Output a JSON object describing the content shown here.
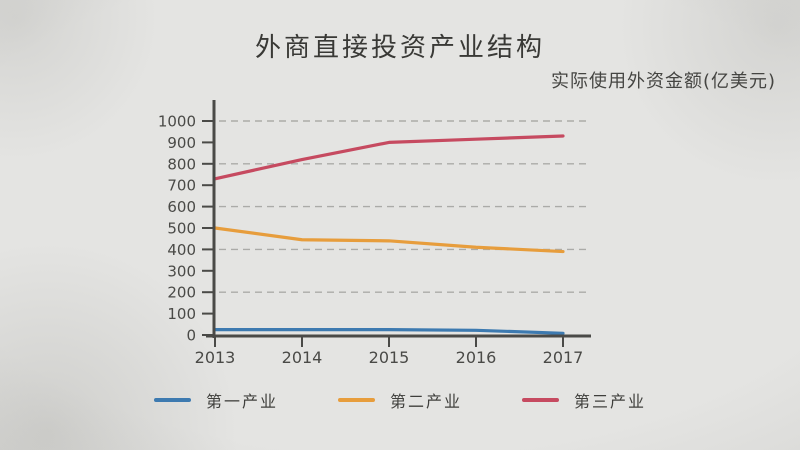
{
  "header": {
    "title": "外商直接投资产业结构",
    "subtitle": "实际使用外资金额(亿美元)"
  },
  "chart_data": {
    "type": "line",
    "title": "外商直接投资产业结构",
    "subtitle": "实际使用外资金额(亿美元)",
    "categories": [
      "2013",
      "2014",
      "2015",
      "2016",
      "2017"
    ],
    "y_ticks": [
      0,
      100,
      200,
      300,
      400,
      500,
      600,
      700,
      800,
      900,
      1000
    ],
    "gridline_values": [
      200,
      400,
      600,
      800,
      1000
    ],
    "ylim": [
      0,
      1000
    ],
    "grid": "horizontal-dashed",
    "legend_position": "bottom",
    "series": [
      {
        "name": "第一产业",
        "color": "#3d7ab0",
        "values": [
          25,
          25,
          25,
          22,
          8
        ]
      },
      {
        "name": "第二产业",
        "color": "#e79d3c",
        "values": [
          500,
          445,
          440,
          410,
          390
        ]
      },
      {
        "name": "第三产业",
        "color": "#c64a60",
        "values": [
          730,
          820,
          900,
          915,
          930
        ]
      }
    ],
    "axis_color": "#4a4a47",
    "gridline_color": "#9e9e9a",
    "text_color": "#4a4a47"
  }
}
